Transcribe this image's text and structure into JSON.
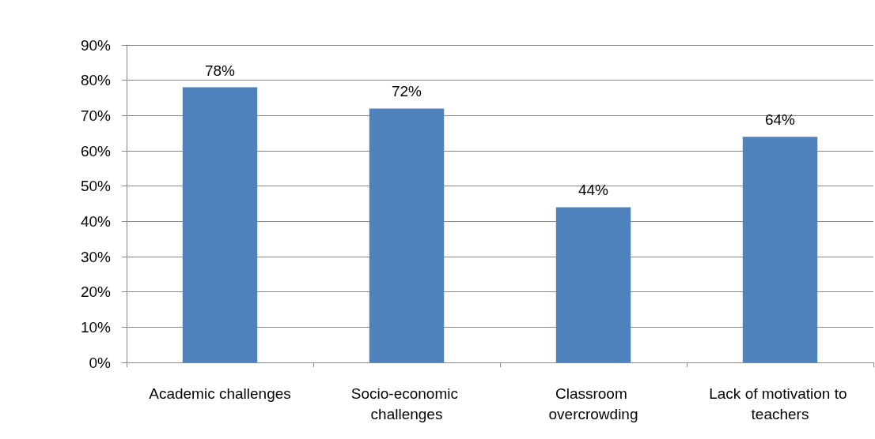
{
  "chart_data": {
    "type": "bar",
    "categories": [
      "Academic challenges",
      "Socio-economic challenges",
      "Classroom overcrowding",
      "Lack of motivation to teachers"
    ],
    "values": [
      78,
      72,
      44,
      64
    ],
    "color": "#4f81bd",
    "value_labels": [
      "78%",
      "72%",
      "44%",
      "64%"
    ],
    "ylim": [
      0,
      90
    ],
    "yticks": [
      {
        "value": 0,
        "label": "0%"
      },
      {
        "value": 10,
        "label": "10%"
      },
      {
        "value": 20,
        "label": "20%"
      },
      {
        "value": 30,
        "label": "30%"
      },
      {
        "value": 40,
        "label": "40%"
      },
      {
        "value": 50,
        "label": "50%"
      },
      {
        "value": 60,
        "label": "60%"
      },
      {
        "value": 70,
        "label": "70%"
      },
      {
        "value": 80,
        "label": "80%"
      },
      {
        "value": 90,
        "label": "90%"
      }
    ],
    "grid": "y"
  }
}
